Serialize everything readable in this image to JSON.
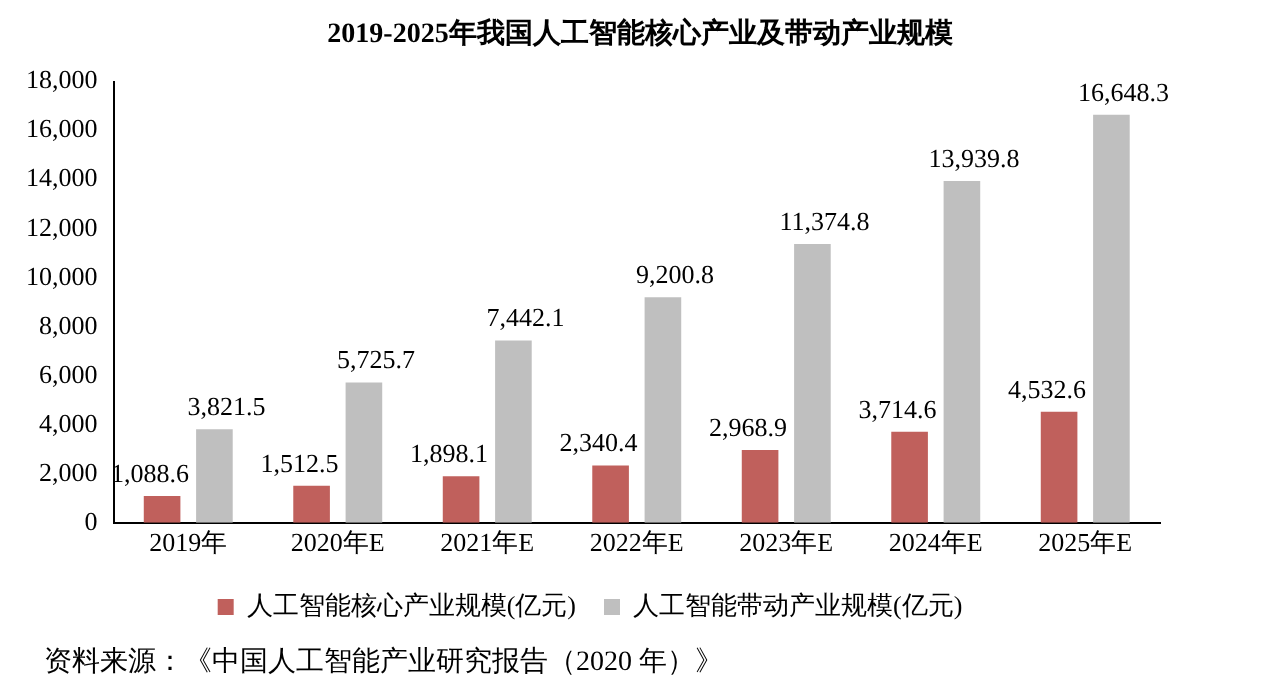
{
  "chart_data": {
    "type": "bar",
    "title": "2019-2025年我国人工智能核心产业及带动产业规模",
    "categories": [
      "2019年",
      "2020年E",
      "2021年E",
      "2022年E",
      "2023年E",
      "2024年E",
      "2025年E"
    ],
    "series": [
      {
        "name": "人工智能核心产业规模(亿元)",
        "color": "#c0605c",
        "values": [
          1088.6,
          1512.5,
          1898.1,
          2340.4,
          2968.9,
          3714.6,
          4532.6
        ],
        "value_labels": [
          "1,088.6",
          "1,512.5",
          "1,898.1",
          "2,340.4",
          "2,968.9",
          "3,714.6",
          "4,532.6"
        ]
      },
      {
        "name": "人工智能带动产业规模(亿元)",
        "color": "#bfbfbf",
        "values": [
          3821.5,
          5725.7,
          7442.1,
          9200.8,
          11374.8,
          13939.8,
          16648.3
        ],
        "value_labels": [
          "3,821.5",
          "5,725.7",
          "7,442.1",
          "9,200.8",
          "11,374.8",
          "13,939.8",
          "16,648.3"
        ]
      }
    ],
    "ylim": [
      0,
      18000
    ],
    "yticks": [
      0,
      {
        "value": 2000,
        "label": "2,000"
      },
      {
        "value": 4000,
        "label": "4,000"
      },
      {
        "value": 6000,
        "label": "6,000"
      },
      {
        "value": 8000,
        "label": "8,000"
      },
      {
        "value": 10000,
        "label": "10,000"
      },
      {
        "value": 12000,
        "label": "12,000"
      },
      {
        "value": 14000,
        "label": "14,000"
      },
      {
        "value": 16000,
        "label": "16,000"
      },
      {
        "value": 18000,
        "label": "18,000"
      }
    ],
    "grid": false,
    "legend": "bottom",
    "annotations": [
      "资料来源：《中国人工智能产业研究报告（2020 年）》"
    ]
  }
}
